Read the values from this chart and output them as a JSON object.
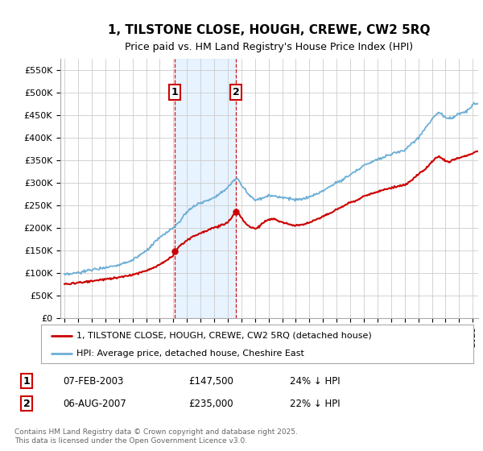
{
  "title": "1, TILSTONE CLOSE, HOUGH, CREWE, CW2 5RQ",
  "subtitle": "Price paid vs. HM Land Registry's House Price Index (HPI)",
  "ylabel_ticks": [
    "£0",
    "£50K",
    "£100K",
    "£150K",
    "£200K",
    "£250K",
    "£300K",
    "£350K",
    "£400K",
    "£450K",
    "£500K",
    "£550K"
  ],
  "ytick_values": [
    0,
    50000,
    100000,
    150000,
    200000,
    250000,
    300000,
    350000,
    400000,
    450000,
    500000,
    550000
  ],
  "ylim": [
    0,
    575000
  ],
  "xlim_start": 1994.7,
  "xlim_end": 2025.4,
  "xtick_years": [
    1995,
    1996,
    1997,
    1998,
    1999,
    2000,
    2001,
    2002,
    2003,
    2004,
    2005,
    2006,
    2007,
    2008,
    2009,
    2010,
    2011,
    2012,
    2013,
    2014,
    2015,
    2016,
    2017,
    2018,
    2019,
    2020,
    2021,
    2022,
    2023,
    2024,
    2025
  ],
  "transaction1_date": "07-FEB-2003",
  "transaction1_price": 147500,
  "transaction1_year": 2003.1,
  "transaction2_date": "06-AUG-2007",
  "transaction2_price": 235000,
  "transaction2_year": 2007.6,
  "line1_color": "#cc0000",
  "line2_color": "#6baed6",
  "background_color": "#ffffff",
  "grid_color": "#cccccc",
  "legend1_label": "1, TILSTONE CLOSE, HOUGH, CREWE, CW2 5RQ (detached house)",
  "legend2_label": "HPI: Average price, detached house, Cheshire East",
  "footer": "Contains HM Land Registry data © Crown copyright and database right 2025.\nThis data is licensed under the Open Government Licence v3.0.",
  "shade_color": "#ddeeff",
  "vline_color": "#cc0000",
  "transaction1_hpi_diff": "24% ↓ HPI",
  "transaction2_hpi_diff": "22% ↓ HPI",
  "hpi_keypoints": [
    [
      1995.0,
      95000
    ],
    [
      1996.0,
      100000
    ],
    [
      1997.0,
      107000
    ],
    [
      1998.0,
      112000
    ],
    [
      1999.0,
      118000
    ],
    [
      2000.0,
      128000
    ],
    [
      2001.0,
      148000
    ],
    [
      2002.0,
      178000
    ],
    [
      2003.0,
      200000
    ],
    [
      2003.5,
      215000
    ],
    [
      2004.0,
      235000
    ],
    [
      2004.5,
      248000
    ],
    [
      2005.0,
      255000
    ],
    [
      2005.5,
      260000
    ],
    [
      2006.0,
      268000
    ],
    [
      2006.5,
      278000
    ],
    [
      2007.0,
      288000
    ],
    [
      2007.5,
      307000
    ],
    [
      2007.7,
      310000
    ],
    [
      2008.0,
      295000
    ],
    [
      2008.5,
      275000
    ],
    [
      2009.0,
      262000
    ],
    [
      2009.5,
      265000
    ],
    [
      2010.0,
      272000
    ],
    [
      2010.5,
      270000
    ],
    [
      2011.0,
      268000
    ],
    [
      2011.5,
      265000
    ],
    [
      2012.0,
      262000
    ],
    [
      2012.5,
      263000
    ],
    [
      2013.0,
      268000
    ],
    [
      2013.5,
      275000
    ],
    [
      2014.0,
      282000
    ],
    [
      2014.5,
      292000
    ],
    [
      2015.0,
      300000
    ],
    [
      2015.5,
      308000
    ],
    [
      2016.0,
      318000
    ],
    [
      2016.5,
      328000
    ],
    [
      2017.0,
      338000
    ],
    [
      2017.5,
      345000
    ],
    [
      2018.0,
      352000
    ],
    [
      2018.5,
      358000
    ],
    [
      2019.0,
      363000
    ],
    [
      2019.5,
      368000
    ],
    [
      2020.0,
      372000
    ],
    [
      2020.5,
      385000
    ],
    [
      2021.0,
      400000
    ],
    [
      2021.5,
      420000
    ],
    [
      2022.0,
      440000
    ],
    [
      2022.3,
      452000
    ],
    [
      2022.5,
      455000
    ],
    [
      2022.8,
      450000
    ],
    [
      2023.0,
      445000
    ],
    [
      2023.3,
      442000
    ],
    [
      2023.5,
      445000
    ],
    [
      2023.8,
      450000
    ],
    [
      2024.0,
      452000
    ],
    [
      2024.3,
      455000
    ],
    [
      2024.6,
      460000
    ],
    [
      2024.8,
      465000
    ],
    [
      2025.0,
      472000
    ],
    [
      2025.3,
      476000
    ]
  ],
  "price_keypoints": [
    [
      1995.0,
      75000
    ],
    [
      1996.0,
      78000
    ],
    [
      1997.0,
      82000
    ],
    [
      1998.0,
      86000
    ],
    [
      1999.0,
      90000
    ],
    [
      2000.0,
      96000
    ],
    [
      2001.0,
      105000
    ],
    [
      2002.0,
      118000
    ],
    [
      2003.0,
      138000
    ],
    [
      2003.1,
      147500
    ],
    [
      2003.5,
      160000
    ],
    [
      2004.0,
      172000
    ],
    [
      2004.5,
      182000
    ],
    [
      2005.0,
      188000
    ],
    [
      2005.5,
      195000
    ],
    [
      2006.0,
      200000
    ],
    [
      2006.5,
      205000
    ],
    [
      2007.0,
      212000
    ],
    [
      2007.6,
      235000
    ],
    [
      2007.8,
      232000
    ],
    [
      2008.0,
      222000
    ],
    [
      2008.3,
      210000
    ],
    [
      2008.5,
      205000
    ],
    [
      2008.8,
      200000
    ],
    [
      2009.0,
      198000
    ],
    [
      2009.3,
      202000
    ],
    [
      2009.5,
      210000
    ],
    [
      2009.8,
      215000
    ],
    [
      2010.0,
      218000
    ],
    [
      2010.3,
      220000
    ],
    [
      2010.5,
      218000
    ],
    [
      2011.0,
      212000
    ],
    [
      2011.5,
      208000
    ],
    [
      2012.0,
      205000
    ],
    [
      2012.5,
      207000
    ],
    [
      2013.0,
      212000
    ],
    [
      2013.5,
      218000
    ],
    [
      2014.0,
      225000
    ],
    [
      2014.5,
      232000
    ],
    [
      2015.0,
      240000
    ],
    [
      2015.5,
      248000
    ],
    [
      2016.0,
      256000
    ],
    [
      2016.5,
      262000
    ],
    [
      2017.0,
      270000
    ],
    [
      2017.5,
      275000
    ],
    [
      2018.0,
      280000
    ],
    [
      2018.5,
      285000
    ],
    [
      2019.0,
      288000
    ],
    [
      2019.5,
      292000
    ],
    [
      2020.0,
      295000
    ],
    [
      2020.5,
      305000
    ],
    [
      2021.0,
      318000
    ],
    [
      2021.5,
      330000
    ],
    [
      2022.0,
      345000
    ],
    [
      2022.3,
      355000
    ],
    [
      2022.5,
      358000
    ],
    [
      2022.8,
      352000
    ],
    [
      2023.0,
      348000
    ],
    [
      2023.3,
      345000
    ],
    [
      2023.5,
      350000
    ],
    [
      2023.8,
      352000
    ],
    [
      2024.0,
      355000
    ],
    [
      2024.3,
      358000
    ],
    [
      2024.6,
      360000
    ],
    [
      2024.8,
      362000
    ],
    [
      2025.0,
      365000
    ],
    [
      2025.3,
      370000
    ]
  ]
}
